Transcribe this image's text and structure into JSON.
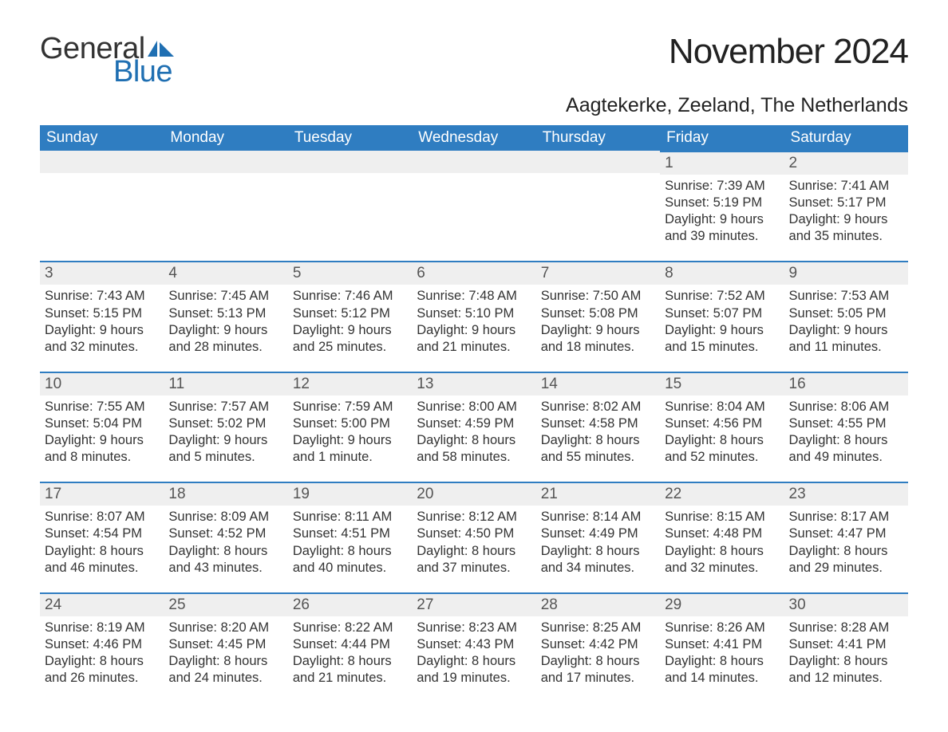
{
  "logo": {
    "text_general": "General",
    "text_blue": "Blue"
  },
  "title": "November 2024",
  "location": "Aagtekerke, Zeeland, The Netherlands",
  "colors": {
    "header_bg": "#2f7dc1",
    "header_text": "#ffffff",
    "day_band_bg": "#efefef",
    "day_band_border": "#2f7dc1",
    "text": "#333333",
    "logo_blue": "#1f6fb2"
  },
  "weekdays": [
    "Sunday",
    "Monday",
    "Tuesday",
    "Wednesday",
    "Thursday",
    "Friday",
    "Saturday"
  ],
  "weeks": [
    [
      null,
      null,
      null,
      null,
      null,
      {
        "day": 1,
        "sunrise": "7:39 AM",
        "sunset": "5:19 PM",
        "daylight": "9 hours and 39 minutes."
      },
      {
        "day": 2,
        "sunrise": "7:41 AM",
        "sunset": "5:17 PM",
        "daylight": "9 hours and 35 minutes."
      }
    ],
    [
      {
        "day": 3,
        "sunrise": "7:43 AM",
        "sunset": "5:15 PM",
        "daylight": "9 hours and 32 minutes."
      },
      {
        "day": 4,
        "sunrise": "7:45 AM",
        "sunset": "5:13 PM",
        "daylight": "9 hours and 28 minutes."
      },
      {
        "day": 5,
        "sunrise": "7:46 AM",
        "sunset": "5:12 PM",
        "daylight": "9 hours and 25 minutes."
      },
      {
        "day": 6,
        "sunrise": "7:48 AM",
        "sunset": "5:10 PM",
        "daylight": "9 hours and 21 minutes."
      },
      {
        "day": 7,
        "sunrise": "7:50 AM",
        "sunset": "5:08 PM",
        "daylight": "9 hours and 18 minutes."
      },
      {
        "day": 8,
        "sunrise": "7:52 AM",
        "sunset": "5:07 PM",
        "daylight": "9 hours and 15 minutes."
      },
      {
        "day": 9,
        "sunrise": "7:53 AM",
        "sunset": "5:05 PM",
        "daylight": "9 hours and 11 minutes."
      }
    ],
    [
      {
        "day": 10,
        "sunrise": "7:55 AM",
        "sunset": "5:04 PM",
        "daylight": "9 hours and 8 minutes."
      },
      {
        "day": 11,
        "sunrise": "7:57 AM",
        "sunset": "5:02 PM",
        "daylight": "9 hours and 5 minutes."
      },
      {
        "day": 12,
        "sunrise": "7:59 AM",
        "sunset": "5:00 PM",
        "daylight": "9 hours and 1 minute."
      },
      {
        "day": 13,
        "sunrise": "8:00 AM",
        "sunset": "4:59 PM",
        "daylight": "8 hours and 58 minutes."
      },
      {
        "day": 14,
        "sunrise": "8:02 AM",
        "sunset": "4:58 PM",
        "daylight": "8 hours and 55 minutes."
      },
      {
        "day": 15,
        "sunrise": "8:04 AM",
        "sunset": "4:56 PM",
        "daylight": "8 hours and 52 minutes."
      },
      {
        "day": 16,
        "sunrise": "8:06 AM",
        "sunset": "4:55 PM",
        "daylight": "8 hours and 49 minutes."
      }
    ],
    [
      {
        "day": 17,
        "sunrise": "8:07 AM",
        "sunset": "4:54 PM",
        "daylight": "8 hours and 46 minutes."
      },
      {
        "day": 18,
        "sunrise": "8:09 AM",
        "sunset": "4:52 PM",
        "daylight": "8 hours and 43 minutes."
      },
      {
        "day": 19,
        "sunrise": "8:11 AM",
        "sunset": "4:51 PM",
        "daylight": "8 hours and 40 minutes."
      },
      {
        "day": 20,
        "sunrise": "8:12 AM",
        "sunset": "4:50 PM",
        "daylight": "8 hours and 37 minutes."
      },
      {
        "day": 21,
        "sunrise": "8:14 AM",
        "sunset": "4:49 PM",
        "daylight": "8 hours and 34 minutes."
      },
      {
        "day": 22,
        "sunrise": "8:15 AM",
        "sunset": "4:48 PM",
        "daylight": "8 hours and 32 minutes."
      },
      {
        "day": 23,
        "sunrise": "8:17 AM",
        "sunset": "4:47 PM",
        "daylight": "8 hours and 29 minutes."
      }
    ],
    [
      {
        "day": 24,
        "sunrise": "8:19 AM",
        "sunset": "4:46 PM",
        "daylight": "8 hours and 26 minutes."
      },
      {
        "day": 25,
        "sunrise": "8:20 AM",
        "sunset": "4:45 PM",
        "daylight": "8 hours and 24 minutes."
      },
      {
        "day": 26,
        "sunrise": "8:22 AM",
        "sunset": "4:44 PM",
        "daylight": "8 hours and 21 minutes."
      },
      {
        "day": 27,
        "sunrise": "8:23 AM",
        "sunset": "4:43 PM",
        "daylight": "8 hours and 19 minutes."
      },
      {
        "day": 28,
        "sunrise": "8:25 AM",
        "sunset": "4:42 PM",
        "daylight": "8 hours and 17 minutes."
      },
      {
        "day": 29,
        "sunrise": "8:26 AM",
        "sunset": "4:41 PM",
        "daylight": "8 hours and 14 minutes."
      },
      {
        "day": 30,
        "sunrise": "8:28 AM",
        "sunset": "4:41 PM",
        "daylight": "8 hours and 12 minutes."
      }
    ]
  ],
  "labels": {
    "sunrise": "Sunrise:",
    "sunset": "Sunset:",
    "daylight": "Daylight:"
  }
}
